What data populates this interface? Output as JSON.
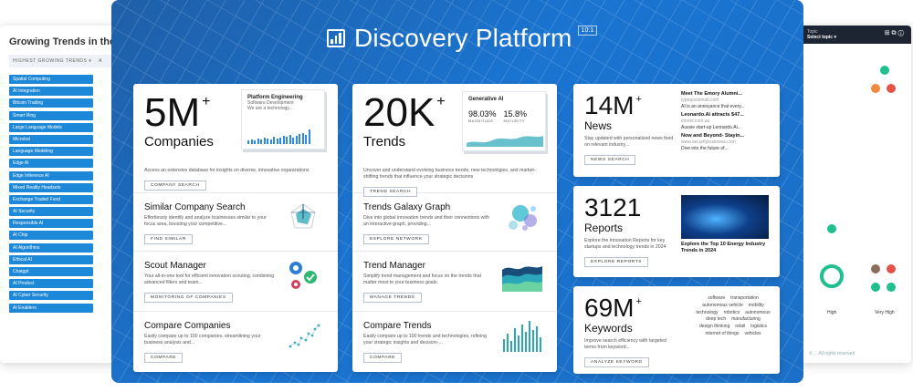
{
  "left_panel": {
    "title": "Growing Trends in the",
    "filter": "HIGHEST GROWING TRENDS ▾",
    "filter2": "A",
    "tags": [
      "Spatial Computing",
      "AI Integration",
      "Bitcoin Trading",
      "Smart Ring",
      "Large Language Models",
      "Microled",
      "Language Modeling",
      "Edge AI",
      "Edge Inference AI",
      "Mixed Reality Headsets",
      "Exchange Traded Fund",
      "AI Security",
      "Responsible AI",
      "AI Chip",
      "AI Algorithms",
      "Ethical AI",
      "Chatgpt",
      "AI Product",
      "AI Cyber Security",
      "AI Enablers"
    ]
  },
  "right_panel": {
    "header_label": "Topic",
    "header_select": "Select topic ▾",
    "header_icons": "⊞ ⧉ ⓘ",
    "labels": [
      "High",
      "Very High"
    ],
    "footer": "© ... All rights reserved"
  },
  "brand": {
    "name": "Discovery Platform",
    "version": "10.1"
  },
  "companies_card": {
    "big": "5M",
    "plus": "+",
    "sub": "Companies",
    "mini_title": "Platform Engineering",
    "mini_sub": "Software Development",
    "mini_sub2": "We are a technology...",
    "desc": "Access an extensive database for insights on diverse, innovative organizations",
    "button": "COMPANY SEARCH",
    "sections": [
      {
        "title": "Similar Company Search",
        "desc": "Effortlessly identify and analyze businesses similar to your focus area, boosting your competitive...",
        "button": "FIND SIMILAR"
      },
      {
        "title": "Scout Manager",
        "desc": "Your all-in-one tool for efficient innovation scouting, combining advanced filters and team...",
        "button": "MONITORING OF COMPANIES"
      },
      {
        "title": "Compare Companies",
        "desc": "Easily compare up to 100 companies, streamlining your business analysis and...",
        "button": "COMPARE"
      }
    ]
  },
  "trends_card": {
    "big": "20K",
    "plus": "+",
    "sub": "Trends",
    "mini_title": "Generative AI",
    "mini_val1": "98.03%",
    "mini_lbl1": "MAGNITUDE",
    "mini_val2": "15.8%",
    "mini_lbl2": "MATURITY",
    "desc": "Uncover and understand evolving business trends, new technologies, and market-shifting trends that influence your strategic decisions",
    "button": "TREND SEARCH",
    "sections": [
      {
        "title": "Trends Galaxy Graph",
        "desc": "Dive into global innovation trends and their connections with an interactive graph, providing...",
        "button": "EXPLORE NETWORK"
      },
      {
        "title": "Trend Manager",
        "desc": "Simplify trend management and focus on the trends that matter most to your business goals.",
        "button": "MANAGE TRENDS"
      },
      {
        "title": "Compare Trends",
        "desc": "Easily compare up to 100 trends and technologies, refining your strategic insights and decision-...",
        "button": "COMPARE"
      }
    ]
  },
  "news_card": {
    "big": "14M",
    "plus": "+",
    "sub": "News",
    "desc": "Stay updated with personalized news feed on relevant industry...",
    "button": "NEWS SEARCH",
    "items": [
      {
        "title": "Meet The Emory Alumni...",
        "src": "typepostsmall.com",
        "body": "AI is an annoyance that every..."
      },
      {
        "title": "Leonardo.Ai attracts $47...",
        "src": "einnet.com.au",
        "body": "Aussie start-up Leonardo.Ai..."
      },
      {
        "title": "Now and Beyond- Stayin...",
        "src": "www.securitybusiness.com",
        "body": "Dive into the future of..."
      }
    ]
  },
  "reports_card": {
    "big": "3121",
    "sub": "Reports",
    "desc": "Explore the Innovation Reports for key startups and technology trends in 2024",
    "button": "EXPLORE REPORTS",
    "image_caption": "Explore the Top 10 Energy Industry Trends in 2024"
  },
  "keywords_card": {
    "big": "69M",
    "plus": "+",
    "sub": "Keywords",
    "desc": "Improve search efficiency with targeted terms from keyword...",
    "button": "ANALYZE KEYWORD",
    "cloud": [
      "software",
      "transportation",
      "autonomous vehicle",
      "mobility",
      "technology",
      "robotics",
      "autonomous",
      "deep tech",
      "manufacturing",
      "design thinking",
      "retail",
      "logistics",
      "internet of things",
      "vehicles"
    ]
  },
  "colors": {
    "brand_blue": "#1a74d0",
    "tag_blue": "#1e88d8",
    "dot_green": "#1fbf8f",
    "dot_orange": "#f0883e",
    "dot_red": "#e5534b",
    "dot_brown": "#8a6d5c"
  }
}
